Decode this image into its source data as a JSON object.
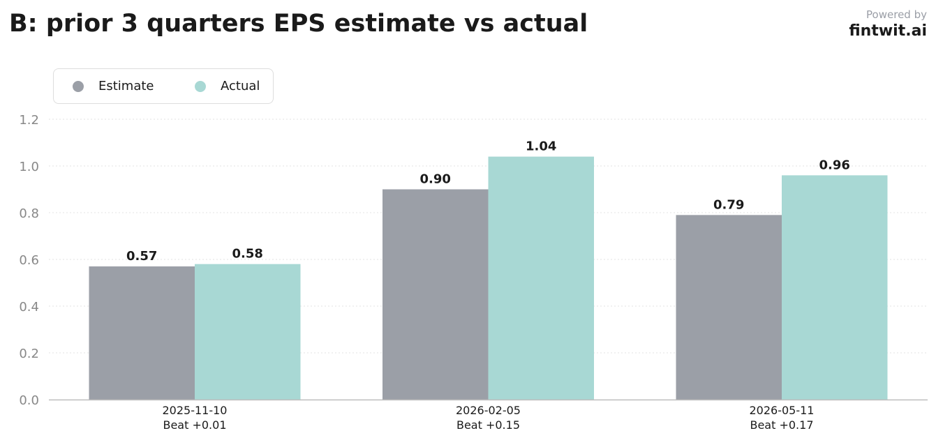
{
  "header": {
    "title": "B: prior 3 quarters EPS estimate vs actual",
    "powered_by": "Powered by",
    "brand": "fintwit.ai"
  },
  "legend": {
    "placement": "top-left",
    "items": [
      {
        "label": "Estimate",
        "color": "#9b9fa7"
      },
      {
        "label": "Actual",
        "color": "#a8d8d4"
      }
    ]
  },
  "chart_data": {
    "type": "bar",
    "title": "B: prior 3 quarters EPS estimate vs actual",
    "categories": [
      "2025-11-10",
      "2026-02-05",
      "2026-05-11"
    ],
    "category_sublabels": [
      "Beat +0.01",
      "Beat +0.15",
      "Beat +0.17"
    ],
    "series": [
      {
        "name": "Estimate",
        "color": "#9b9fa7",
        "values": [
          0.57,
          0.9,
          0.79
        ],
        "labels": [
          "0.57",
          "0.90",
          "0.79"
        ]
      },
      {
        "name": "Actual",
        "color": "#a8d8d4",
        "values": [
          0.58,
          1.04,
          0.96
        ],
        "labels": [
          "0.58",
          "1.04",
          "0.96"
        ]
      }
    ],
    "ylim": [
      0,
      1.2
    ],
    "yticks": [
      "0.0",
      "0.2",
      "0.4",
      "0.6",
      "0.8",
      "1.0",
      "1.2"
    ],
    "ytick_values": [
      0,
      0.2,
      0.4,
      0.6,
      0.8,
      1.0,
      1.2
    ],
    "grid": true,
    "legend_placement": "top-left"
  }
}
